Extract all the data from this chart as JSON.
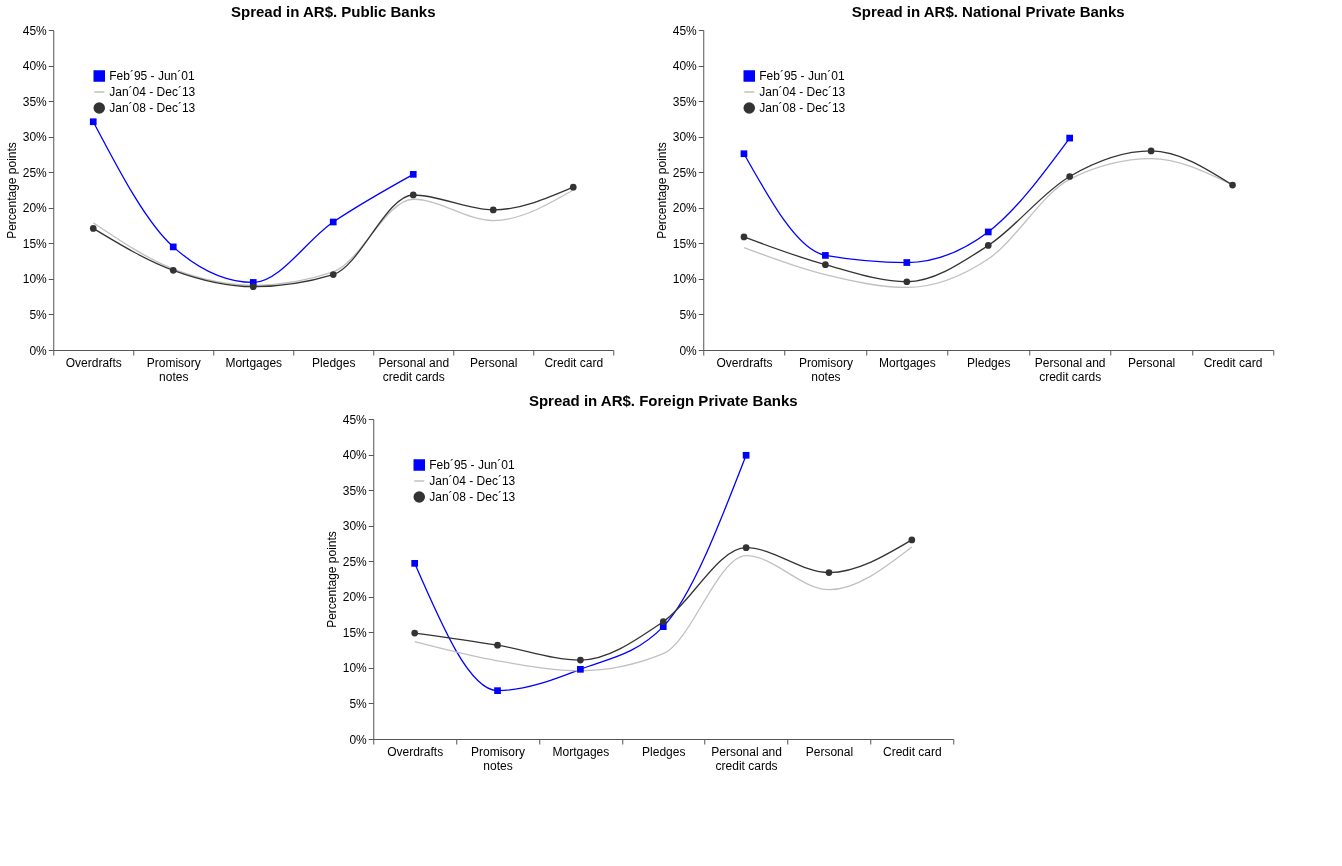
{
  "chart_data": [
    {
      "type": "line",
      "title": "Spread in AR$. Public Banks",
      "ylabel": "Percentage points",
      "categories": [
        "Overdrafts",
        "Promisory notes",
        "Mortgages",
        "Pledges",
        "Personal and credit cards",
        "Personal",
        "Credit card"
      ],
      "series": [
        {
          "name": "Feb´95 - Jun´01",
          "color": "#0000ff",
          "marker": "square",
          "values": [
            32.1,
            14.5,
            9.5,
            18.0,
            24.7,
            null,
            null
          ]
        },
        {
          "name": "Jan´04 - Dec´13",
          "color": "#c0c0c0",
          "marker": "none",
          "values": [
            17.9,
            11.4,
            9.1,
            11.0,
            21.2,
            18.2,
            22.5
          ]
        },
        {
          "name": "Jan´08 - Dec´13",
          "color": "#333333",
          "marker": "circle",
          "values": [
            17.1,
            11.2,
            8.9,
            10.6,
            21.8,
            19.7,
            22.9
          ]
        }
      ],
      "ylim": [
        0,
        45
      ],
      "yticks": [
        {
          "value": 0,
          "label": "0%"
        },
        {
          "value": 5,
          "label": "5%"
        },
        {
          "value": 10,
          "label": "10%"
        },
        {
          "value": 15,
          "label": "15%"
        },
        {
          "value": 20,
          "label": "20%"
        },
        {
          "value": 25,
          "label": "25%"
        },
        {
          "value": 30,
          "label": "30%"
        },
        {
          "value": 35,
          "label": "35%"
        },
        {
          "value": 40,
          "label": "40%"
        },
        {
          "value": 45,
          "label": "45%"
        }
      ],
      "grid": false,
      "legend": "top left"
    },
    {
      "type": "line",
      "title": "Spread in AR$. National Private Banks",
      "ylabel": "Percentage points",
      "categories": [
        "Overdrafts",
        "Promisory notes",
        "Mortgages",
        "Pledges",
        "Personal and credit cards",
        "Personal",
        "Credit card"
      ],
      "series": [
        {
          "name": "Feb´95 - Jun´01",
          "color": "#0000ff",
          "marker": "square",
          "values": [
            27.6,
            13.3,
            12.3,
            16.6,
            29.8,
            null,
            null
          ]
        },
        {
          "name": "Jan´04 - Dec´13",
          "color": "#c0c0c0",
          "marker": "none",
          "values": [
            14.4,
            10.6,
            8.8,
            12.8,
            24.0,
            26.9,
            23.2
          ]
        },
        {
          "name": "Jan´08 - Dec´13",
          "color": "#333333",
          "marker": "circle",
          "values": [
            15.9,
            12.0,
            9.6,
            14.7,
            24.4,
            28.0,
            23.2
          ]
        }
      ],
      "ylim": [
        0,
        45
      ],
      "yticks": [
        {
          "value": 0,
          "label": "0%"
        },
        {
          "value": 5,
          "label": "5%"
        },
        {
          "value": 10,
          "label": "10%"
        },
        {
          "value": 15,
          "label": "15%"
        },
        {
          "value": 20,
          "label": "20%"
        },
        {
          "value": 25,
          "label": "25%"
        },
        {
          "value": 30,
          "label": "30%"
        },
        {
          "value": 35,
          "label": "35%"
        },
        {
          "value": 40,
          "label": "40%"
        },
        {
          "value": 45,
          "label": "45%"
        }
      ],
      "grid": false,
      "legend": "top left"
    },
    {
      "type": "line",
      "title": "Spread in AR$. Foreign Private Banks",
      "ylabel": "Percentage points",
      "categories": [
        "Overdrafts",
        "Promisory notes",
        "Mortgages",
        "Pledges",
        "Personal and credit cards",
        "Personal",
        "Credit card"
      ],
      "series": [
        {
          "name": "Feb´95 - Jun´01",
          "color": "#0000ff",
          "marker": "square",
          "values": [
            24.7,
            6.8,
            9.8,
            15.8,
            39.9,
            null,
            null
          ]
        },
        {
          "name": "Jan´04 - Dec´13",
          "color": "#c0c0c0",
          "marker": "none",
          "values": [
            13.7,
            11.0,
            9.6,
            12.0,
            25.8,
            21.0,
            27.0
          ]
        },
        {
          "name": "Jan´08 - Dec´13",
          "color": "#333333",
          "marker": "circle",
          "values": [
            14.9,
            13.2,
            11.1,
            16.5,
            26.9,
            23.4,
            28.0
          ]
        }
      ],
      "ylim": [
        0,
        45
      ],
      "yticks": [
        {
          "value": 0,
          "label": "0%"
        },
        {
          "value": 5,
          "label": "5%"
        },
        {
          "value": 10,
          "label": "10%"
        },
        {
          "value": 15,
          "label": "15%"
        },
        {
          "value": 20,
          "label": "20%"
        },
        {
          "value": 25,
          "label": "25%"
        },
        {
          "value": 30,
          "label": "30%"
        },
        {
          "value": 35,
          "label": "35%"
        },
        {
          "value": 40,
          "label": "40%"
        },
        {
          "value": 45,
          "label": "45%"
        }
      ],
      "grid": false,
      "legend": "top left"
    }
  ]
}
